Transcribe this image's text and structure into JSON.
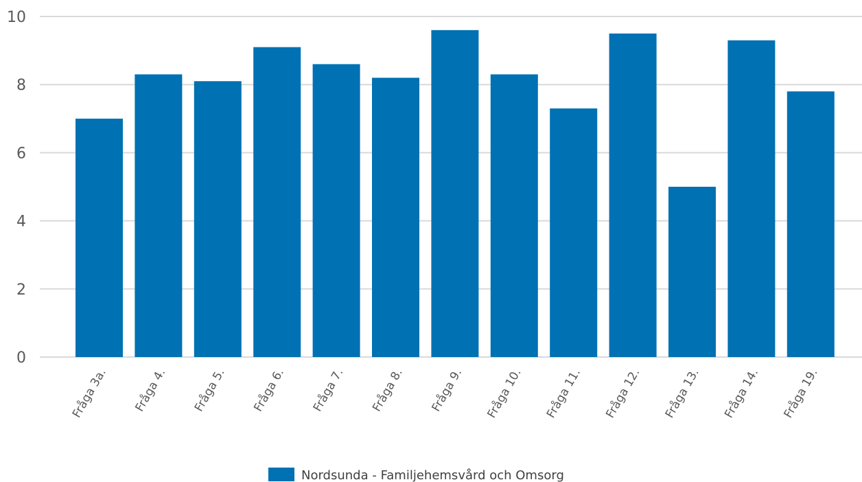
{
  "chart_data": {
    "type": "bar",
    "categories": [
      "Fråga 3a.",
      "Fråga 4.",
      "Fråga 5.",
      "Fråga 6.",
      "Fråga 7.",
      "Fråga 8.",
      "Fråga 9.",
      "Fråga 10.",
      "Fråga 11.",
      "Fråga 12.",
      "Fråga 13.",
      "Fråga 14.",
      "Fråga 19."
    ],
    "series": [
      {
        "name": "Nordsunda - Familjehemsvård och Omsorg",
        "values": [
          7.0,
          8.3,
          8.1,
          9.1,
          8.6,
          8.2,
          9.6,
          8.3,
          7.3,
          9.5,
          5.0,
          9.3,
          7.8
        ]
      }
    ],
    "ylim": [
      0,
      10
    ],
    "yticks": [
      0,
      2,
      4,
      6,
      8,
      10
    ],
    "grid": true,
    "legend_position": "bottom",
    "bar_color": "#0071b3"
  }
}
